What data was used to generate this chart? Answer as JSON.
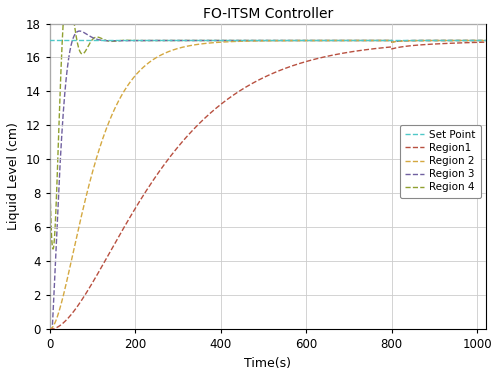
{
  "title": "FO-ITSM Controller",
  "xlabel": "Time(s)",
  "ylabel": "Liquid Level (cm)",
  "setpoint": 17.0,
  "t_end": 1020,
  "ylim": [
    0,
    18
  ],
  "xlim": [
    0,
    1020
  ],
  "yticks": [
    0,
    2,
    4,
    6,
    8,
    10,
    12,
    14,
    16,
    18
  ],
  "xticks": [
    0,
    200,
    400,
    600,
    800,
    1000
  ],
  "disturbance_t": 800,
  "colors": {
    "setpoint": "#4FC8C8",
    "region1": "#B85040",
    "region2": "#D4A840",
    "region3": "#7060A0",
    "region4": "#90A030"
  },
  "legend_labels": [
    "Set Point",
    "Region1",
    "Region 2",
    "Region 3",
    "Region 4"
  ],
  "linestyles": [
    "--",
    "--",
    "--",
    "--",
    "--"
  ]
}
